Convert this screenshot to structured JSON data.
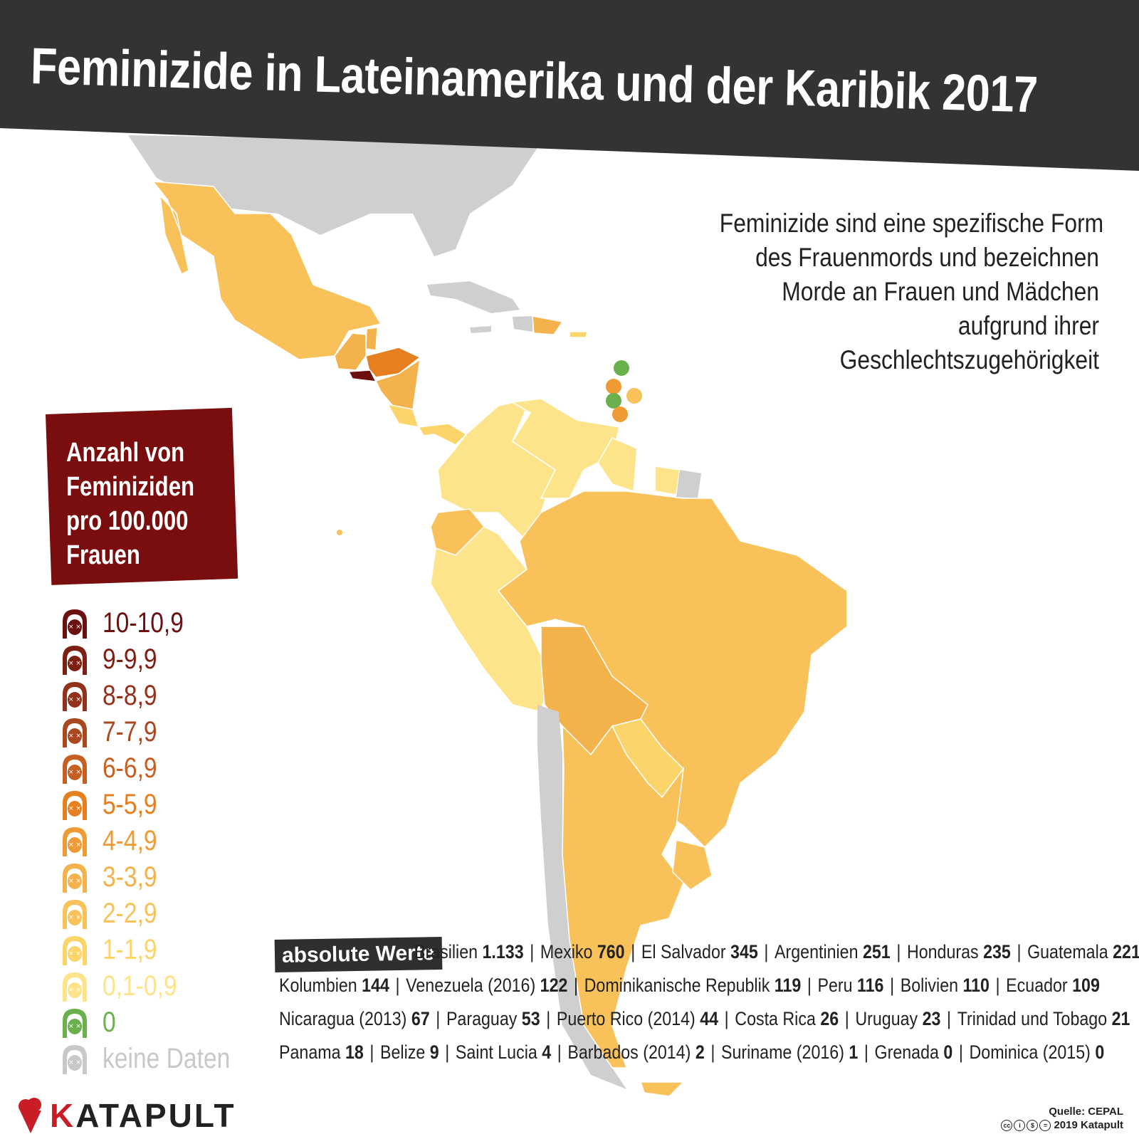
{
  "title": "Feminizide in Lateinamerika und der Karibik 2017",
  "description": [
    "Feminizide sind eine spezifische Form",
    "des Frauenmords und bezeichnen",
    "Morde an Frauen und Mädchen",
    "aufgrund ihrer",
    "Geschlechtszugehörigkeit"
  ],
  "legend": {
    "title_lines": [
      "Anzahl von",
      "Feminiziden",
      "pro 100.000",
      "Frauen"
    ],
    "items": [
      {
        "label": "10-10,9",
        "color": "#6b0f0f"
      },
      {
        "label": "9-9,9",
        "color": "#7e1f14"
      },
      {
        "label": "8-8,9",
        "color": "#93321a"
      },
      {
        "label": "7-7,9",
        "color": "#a9471f"
      },
      {
        "label": "6-6,9",
        "color": "#c55f22"
      },
      {
        "label": "5-5,9",
        "color": "#e57f20"
      },
      {
        "label": "4-4,9",
        "color": "#ee9b36"
      },
      {
        "label": "3-3,9",
        "color": "#f4b24c"
      },
      {
        "label": "2-2,9",
        "color": "#f8c15a"
      },
      {
        "label": "1-1,9",
        "color": "#fcd56a"
      },
      {
        "label": "0,1-0,9",
        "color": "#fde38a"
      },
      {
        "label": "0",
        "color": "#6ab04c"
      },
      {
        "label": "keine Daten",
        "color": "#c8c8c8"
      }
    ]
  },
  "map_colors": {
    "no_data": "#cfcfcf",
    "el_salvador": "#6b0f0f",
    "honduras": "#e57f20",
    "guatemala": "#f4b24c",
    "belize": "#f4b24c",
    "mexico": "#f8c15a",
    "nicaragua": "#f4b24c",
    "costa_rica": "#fcd56a",
    "panama": "#fcd56a",
    "dominican_republic": "#f4b24c",
    "puerto_rico": "#fcd56a",
    "colombia": "#fde38a",
    "venezuela": "#fde38a",
    "guyana": "#fde38a",
    "suriname": "#fde38a",
    "ecuador": "#f8c15a",
    "peru": "#fde38a",
    "brazil": "#f8c15a",
    "bolivia": "#f4b24c",
    "paraguay": "#fcd56a",
    "argentina": "#f8c15a",
    "chile": "#cfcfcf",
    "uruguay": "#f8c15a"
  },
  "caribbean_dots": [
    {
      "name": "Dominica",
      "color": "#6ab04c"
    },
    {
      "name": "Saint Lucia",
      "color": "#ee9b36"
    },
    {
      "name": "Barbados",
      "color": "#f8c15a"
    },
    {
      "name": "Grenada",
      "color": "#6ab04c"
    },
    {
      "name": "Trinidad und Tobago",
      "color": "#ee9b36"
    }
  ],
  "absolute": {
    "tag": "absolute Werte",
    "rows": [
      [
        [
          "Brasilien",
          "1.133"
        ],
        [
          "Mexiko",
          "760"
        ],
        [
          "El Salvador",
          "345"
        ],
        [
          "Argentinien",
          "251"
        ],
        [
          "Honduras",
          "235"
        ],
        [
          "Guatemala",
          "221"
        ]
      ],
      [
        [
          "Kolumbien",
          "144"
        ],
        [
          "Venezuela (2016)",
          "122"
        ],
        [
          "Dominikanische Republik",
          "119"
        ],
        [
          "Peru",
          "116"
        ],
        [
          "Bolivien",
          "110"
        ],
        [
          "Ecuador",
          "109"
        ]
      ],
      [
        [
          "Nicaragua (2013)",
          "67"
        ],
        [
          "Paraguay",
          "53"
        ],
        [
          "Puerto Rico (2014)",
          "44"
        ],
        [
          "Costa Rica",
          "26"
        ],
        [
          "Uruguay",
          "23"
        ],
        [
          "Trinidad und Tobago",
          "21"
        ]
      ],
      [
        [
          "Panama",
          "18"
        ],
        [
          "Belize",
          "9"
        ],
        [
          "Saint Lucia",
          "4"
        ],
        [
          "Barbados (2014)",
          "2"
        ],
        [
          "Suriname (2016)",
          "1"
        ],
        [
          "Grenada",
          "0"
        ],
        [
          "Dominica (2015)",
          "0"
        ]
      ]
    ]
  },
  "logo": {
    "k": "K",
    "rest": "ATAPULT"
  },
  "source": {
    "line1": "Quelle: CEPAL",
    "line2": "2019 Katapult"
  }
}
